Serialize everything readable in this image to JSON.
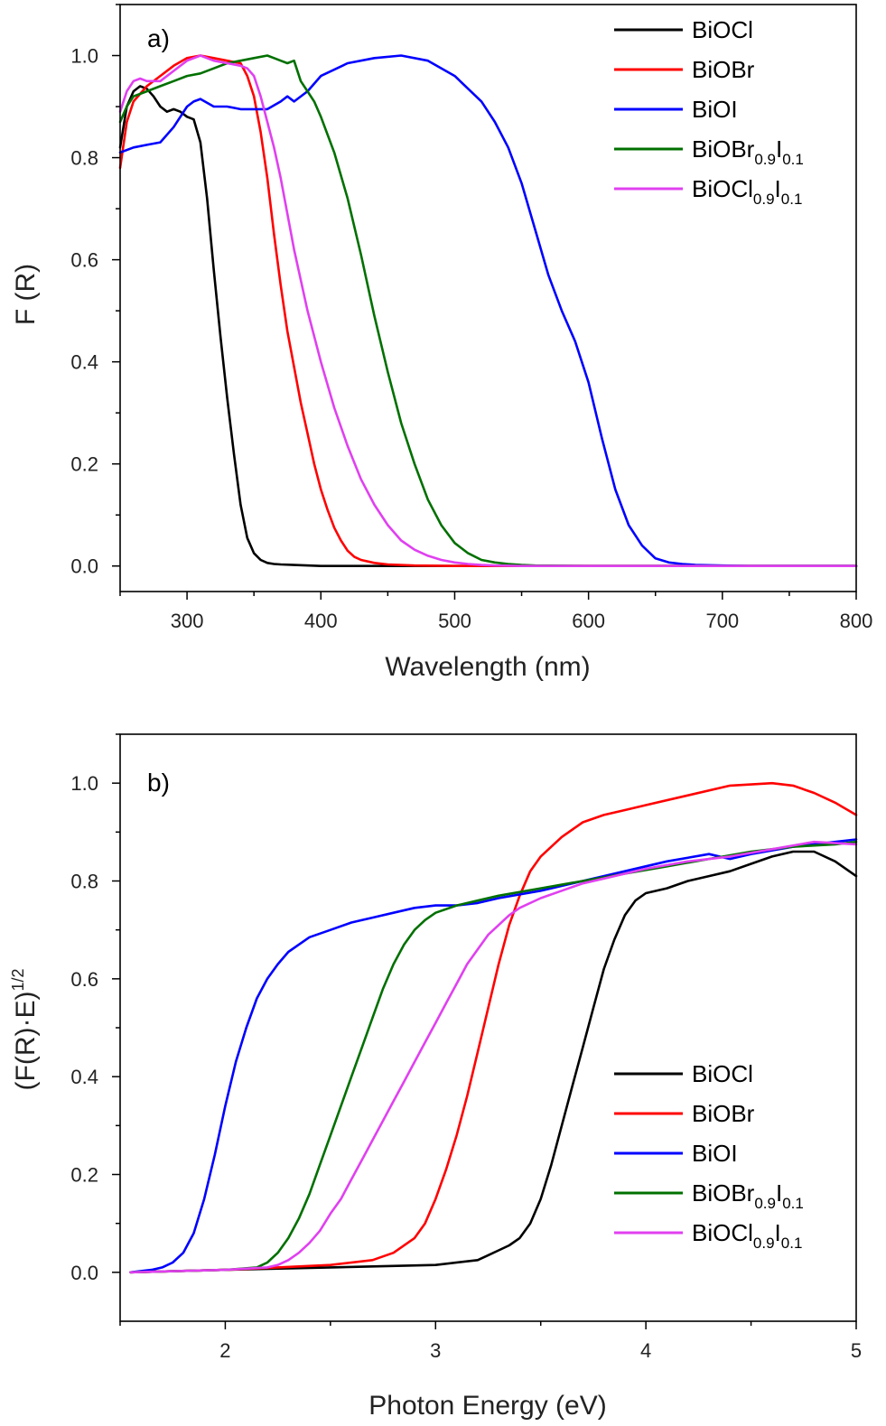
{
  "chart_data": [
    {
      "type": "line",
      "panel_label": "a)",
      "xlabel": "Wavelength (nm)",
      "ylabel": "F (R)",
      "xlim": [
        250,
        800
      ],
      "ylim": [
        -0.05,
        1.1
      ],
      "xticks": [
        300,
        400,
        500,
        600,
        700,
        800
      ],
      "yticks": [
        0.0,
        0.2,
        0.4,
        0.6,
        0.8,
        1.0
      ],
      "grid": false,
      "legend_position": "top-right",
      "series": [
        {
          "name": "BiOCl",
          "color": "#000000",
          "legend_main": "BiOCl",
          "x": [
            250,
            255,
            260,
            265,
            270,
            275,
            280,
            285,
            290,
            295,
            300,
            305,
            310,
            315,
            320,
            325,
            330,
            335,
            340,
            345,
            350,
            355,
            360,
            365,
            370,
            380,
            400,
            450,
            500,
            600,
            700,
            800
          ],
          "y": [
            0.82,
            0.9,
            0.93,
            0.94,
            0.935,
            0.92,
            0.9,
            0.89,
            0.895,
            0.89,
            0.88,
            0.875,
            0.83,
            0.72,
            0.58,
            0.45,
            0.33,
            0.22,
            0.12,
            0.055,
            0.025,
            0.012,
            0.006,
            0.004,
            0.003,
            0.002,
            0.0,
            0.0,
            0.0,
            0.0,
            0.0,
            0.0
          ]
        },
        {
          "name": "BiOBr",
          "color": "#ff0000",
          "legend_main": "BiOBr",
          "x": [
            250,
            255,
            260,
            270,
            280,
            290,
            300,
            310,
            320,
            330,
            340,
            345,
            350,
            355,
            360,
            365,
            370,
            375,
            380,
            385,
            390,
            395,
            400,
            405,
            410,
            415,
            420,
            425,
            430,
            440,
            450,
            470,
            500,
            600,
            700,
            800
          ],
          "y": [
            0.78,
            0.87,
            0.91,
            0.94,
            0.96,
            0.98,
            0.995,
            1.0,
            0.995,
            0.99,
            0.985,
            0.96,
            0.92,
            0.85,
            0.76,
            0.65,
            0.55,
            0.46,
            0.39,
            0.32,
            0.26,
            0.2,
            0.15,
            0.11,
            0.075,
            0.05,
            0.03,
            0.018,
            0.012,
            0.006,
            0.003,
            0.001,
            0.0,
            0.0,
            0.0,
            0.0
          ]
        },
        {
          "name": "BiOI",
          "color": "#0000ff",
          "legend_main": "BiOI",
          "x": [
            250,
            260,
            270,
            280,
            290,
            300,
            305,
            310,
            320,
            330,
            340,
            350,
            360,
            370,
            375,
            380,
            390,
            400,
            420,
            440,
            460,
            480,
            500,
            520,
            530,
            540,
            550,
            560,
            570,
            580,
            590,
            600,
            610,
            620,
            630,
            640,
            650,
            660,
            670,
            680,
            700,
            720,
            800
          ],
          "y": [
            0.81,
            0.82,
            0.825,
            0.83,
            0.86,
            0.9,
            0.91,
            0.915,
            0.9,
            0.9,
            0.895,
            0.895,
            0.895,
            0.91,
            0.92,
            0.91,
            0.93,
            0.96,
            0.985,
            0.995,
            1.0,
            0.99,
            0.96,
            0.91,
            0.87,
            0.82,
            0.75,
            0.66,
            0.57,
            0.5,
            0.44,
            0.36,
            0.25,
            0.15,
            0.08,
            0.04,
            0.015,
            0.007,
            0.004,
            0.002,
            0.001,
            0.0,
            0.0
          ]
        },
        {
          "name": "BiOBr0.9I0.1",
          "color": "#007000",
          "legend_main": "BiOBr",
          "legend_sub1": "0.9",
          "legend_mid": "I",
          "legend_sub2": "0.1",
          "x": [
            250,
            255,
            260,
            270,
            280,
            290,
            300,
            310,
            320,
            330,
            340,
            350,
            360,
            365,
            370,
            375,
            380,
            385,
            390,
            395,
            400,
            410,
            420,
            430,
            440,
            450,
            460,
            470,
            480,
            490,
            500,
            510,
            520,
            530,
            540,
            550,
            560,
            600,
            700,
            800
          ],
          "y": [
            0.87,
            0.9,
            0.92,
            0.93,
            0.94,
            0.95,
            0.96,
            0.965,
            0.975,
            0.985,
            0.99,
            0.995,
            1.0,
            0.995,
            0.99,
            0.985,
            0.99,
            0.95,
            0.93,
            0.91,
            0.88,
            0.81,
            0.72,
            0.61,
            0.49,
            0.38,
            0.28,
            0.2,
            0.13,
            0.08,
            0.045,
            0.025,
            0.012,
            0.007,
            0.004,
            0.002,
            0.001,
            0.0,
            0.0,
            0.0
          ]
        },
        {
          "name": "BiOCl0.9I0.1",
          "color": "#e040f0",
          "legend_main": "BiOCl",
          "legend_sub1": "0.9",
          "legend_mid": "I",
          "legend_sub2": "0.1",
          "x": [
            250,
            255,
            260,
            265,
            270,
            280,
            290,
            300,
            310,
            320,
            330,
            340,
            345,
            350,
            355,
            360,
            365,
            370,
            375,
            380,
            390,
            400,
            410,
            420,
            430,
            440,
            450,
            460,
            470,
            480,
            490,
            500,
            510,
            520,
            530,
            550,
            600,
            700,
            800
          ],
          "y": [
            0.89,
            0.93,
            0.95,
            0.955,
            0.95,
            0.95,
            0.97,
            0.99,
            1.0,
            0.99,
            0.985,
            0.98,
            0.975,
            0.96,
            0.92,
            0.87,
            0.82,
            0.76,
            0.69,
            0.62,
            0.5,
            0.4,
            0.31,
            0.235,
            0.17,
            0.12,
            0.08,
            0.05,
            0.032,
            0.02,
            0.012,
            0.007,
            0.004,
            0.002,
            0.001,
            0.0,
            0.0,
            0.0,
            0.0
          ]
        }
      ]
    },
    {
      "type": "line",
      "panel_label": "b)",
      "xlabel": "Photon Energy (eV)",
      "ylabel_main": "(F(R)·E)",
      "ylabel_sup": "1/2",
      "xlim": [
        1.5,
        5
      ],
      "ylim": [
        -0.1,
        1.1
      ],
      "xticks": [
        2,
        3,
        4,
        5
      ],
      "yticks": [
        0.0,
        0.2,
        0.4,
        0.6,
        0.8,
        1.0
      ],
      "grid": false,
      "legend_position": "bottom-right",
      "series": [
        {
          "name": "BiOCl",
          "color": "#000000",
          "legend_main": "BiOCl",
          "x": [
            1.55,
            2.0,
            2.5,
            3.0,
            3.2,
            3.25,
            3.3,
            3.35,
            3.4,
            3.45,
            3.5,
            3.55,
            3.6,
            3.65,
            3.7,
            3.75,
            3.8,
            3.85,
            3.9,
            3.95,
            4.0,
            4.1,
            4.2,
            4.3,
            4.4,
            4.5,
            4.6,
            4.7,
            4.8,
            4.9,
            5.0
          ],
          "y": [
            0.0,
            0.005,
            0.01,
            0.015,
            0.025,
            0.035,
            0.045,
            0.055,
            0.07,
            0.1,
            0.15,
            0.22,
            0.3,
            0.38,
            0.46,
            0.54,
            0.62,
            0.68,
            0.73,
            0.76,
            0.775,
            0.785,
            0.8,
            0.81,
            0.82,
            0.835,
            0.85,
            0.86,
            0.86,
            0.84,
            0.81
          ]
        },
        {
          "name": "BiOBr",
          "color": "#ff0000",
          "legend_main": "BiOBr",
          "x": [
            1.55,
            2.0,
            2.5,
            2.7,
            2.8,
            2.9,
            2.95,
            3.0,
            3.05,
            3.1,
            3.15,
            3.2,
            3.25,
            3.3,
            3.35,
            3.4,
            3.45,
            3.5,
            3.55,
            3.6,
            3.7,
            3.8,
            3.9,
            4.0,
            4.2,
            4.4,
            4.6,
            4.7,
            4.8,
            4.9,
            5.0
          ],
          "y": [
            0.0,
            0.005,
            0.015,
            0.025,
            0.04,
            0.07,
            0.1,
            0.15,
            0.21,
            0.28,
            0.36,
            0.45,
            0.54,
            0.63,
            0.71,
            0.77,
            0.82,
            0.85,
            0.87,
            0.89,
            0.92,
            0.935,
            0.945,
            0.955,
            0.975,
            0.995,
            1.0,
            0.995,
            0.98,
            0.96,
            0.935
          ]
        },
        {
          "name": "BiOI",
          "color": "#0000ff",
          "legend_main": "BiOI",
          "x": [
            1.55,
            1.65,
            1.7,
            1.75,
            1.8,
            1.85,
            1.9,
            1.95,
            2.0,
            2.05,
            2.1,
            2.15,
            2.2,
            2.25,
            2.3,
            2.35,
            2.4,
            2.5,
            2.6,
            2.7,
            2.8,
            2.9,
            3.0,
            3.1,
            3.2,
            3.3,
            3.5,
            3.7,
            3.9,
            4.1,
            4.3,
            4.4,
            4.5,
            4.7,
            4.9,
            5.0
          ],
          "y": [
            0.0,
            0.005,
            0.01,
            0.02,
            0.04,
            0.08,
            0.15,
            0.24,
            0.34,
            0.43,
            0.5,
            0.56,
            0.6,
            0.63,
            0.655,
            0.67,
            0.685,
            0.7,
            0.715,
            0.725,
            0.735,
            0.745,
            0.75,
            0.75,
            0.755,
            0.765,
            0.78,
            0.8,
            0.82,
            0.84,
            0.855,
            0.845,
            0.855,
            0.87,
            0.88,
            0.885
          ]
        },
        {
          "name": "BiOBr0.9I0.1",
          "color": "#007000",
          "legend_main": "BiOBr",
          "legend_sub1": "0.9",
          "legend_mid": "I",
          "legend_sub2": "0.1",
          "x": [
            1.55,
            2.0,
            2.15,
            2.2,
            2.25,
            2.3,
            2.35,
            2.4,
            2.45,
            2.5,
            2.55,
            2.6,
            2.65,
            2.7,
            2.75,
            2.8,
            2.85,
            2.9,
            2.95,
            3.0,
            3.1,
            3.2,
            3.3,
            3.5,
            3.7,
            3.9,
            4.1,
            4.3,
            4.5,
            4.7,
            4.9,
            5.0
          ],
          "y": [
            0.0,
            0.005,
            0.01,
            0.02,
            0.04,
            0.07,
            0.11,
            0.16,
            0.22,
            0.28,
            0.34,
            0.4,
            0.46,
            0.52,
            0.58,
            0.63,
            0.67,
            0.7,
            0.72,
            0.735,
            0.75,
            0.76,
            0.77,
            0.785,
            0.8,
            0.815,
            0.83,
            0.845,
            0.86,
            0.87,
            0.875,
            0.88
          ]
        },
        {
          "name": "BiOCl0.9I0.1",
          "color": "#e040f0",
          "legend_main": "BiOCl",
          "legend_sub1": "0.9",
          "legend_mid": "I",
          "legend_sub2": "0.1",
          "x": [
            1.55,
            2.0,
            2.2,
            2.25,
            2.3,
            2.35,
            2.4,
            2.45,
            2.5,
            2.55,
            2.6,
            2.65,
            2.7,
            2.75,
            2.8,
            2.85,
            2.9,
            2.95,
            3.0,
            3.05,
            3.1,
            3.15,
            3.2,
            3.25,
            3.3,
            3.35,
            3.4,
            3.5,
            3.6,
            3.7,
            3.8,
            4.0,
            4.2,
            4.4,
            4.6,
            4.8,
            5.0
          ],
          "y": [
            0.0,
            0.005,
            0.01,
            0.015,
            0.025,
            0.04,
            0.06,
            0.085,
            0.12,
            0.15,
            0.19,
            0.23,
            0.27,
            0.31,
            0.35,
            0.39,
            0.43,
            0.47,
            0.51,
            0.55,
            0.59,
            0.63,
            0.66,
            0.69,
            0.71,
            0.73,
            0.745,
            0.765,
            0.78,
            0.795,
            0.805,
            0.825,
            0.84,
            0.85,
            0.865,
            0.88,
            0.875
          ]
        }
      ]
    }
  ]
}
